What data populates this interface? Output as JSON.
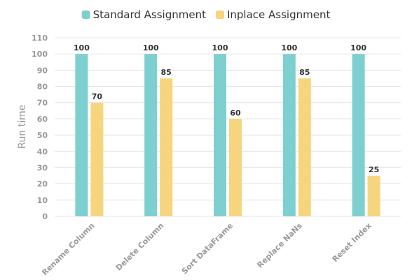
{
  "chart_data": {
    "type": "bar",
    "categories": [
      "Rename Column",
      "Delete Column",
      "Sort DataFrame",
      "Replace NaNs",
      "Reset Index"
    ],
    "series": [
      {
        "name": "Standard Assignment",
        "color": "#7ecfcf",
        "values": [
          100,
          100,
          100,
          100,
          100
        ]
      },
      {
        "name": "Inplace Assignment",
        "color": "#f7d57e",
        "values": [
          70,
          85,
          60,
          85,
          25
        ]
      }
    ],
    "ylabel": "Run time",
    "ylim": [
      0,
      110
    ],
    "yticks": [
      0,
      10,
      20,
      30,
      40,
      50,
      60,
      70,
      80,
      90,
      100,
      110
    ],
    "grid": true,
    "legend_position": "top-center",
    "data_labels": true
  }
}
